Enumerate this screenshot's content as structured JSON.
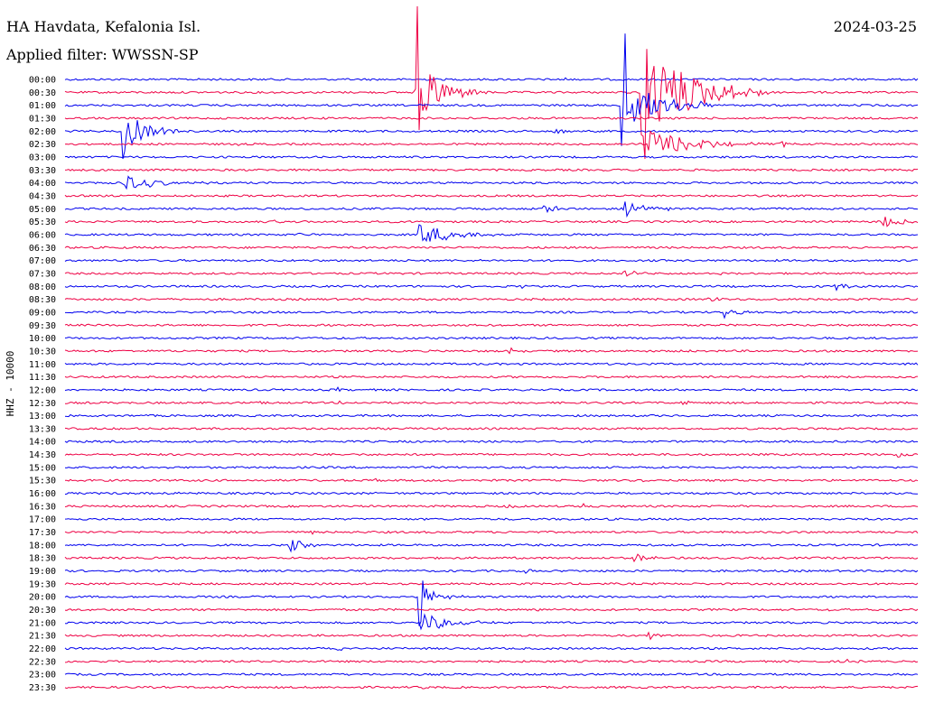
{
  "header": {
    "station": "HA Havdata, Kefalonia Isl.",
    "date": "2024-03-25",
    "filter": "Applied filter: WWSSN-SP"
  },
  "chart_data": {
    "type": "line",
    "title": "HA Havdata, Kefalonia Isl.",
    "ylabel": "HHZ - 10000",
    "rows": [
      "00:00",
      "00:30",
      "01:00",
      "01:30",
      "02:00",
      "02:30",
      "03:00",
      "03:30",
      "04:00",
      "04:30",
      "05:00",
      "05:30",
      "06:00",
      "06:30",
      "07:00",
      "07:30",
      "08:00",
      "08:30",
      "09:00",
      "09:30",
      "10:00",
      "10:30",
      "11:00",
      "11:30",
      "12:00",
      "12:30",
      "13:00",
      "13:30",
      "14:00",
      "14:30",
      "15:00",
      "15:30",
      "16:00",
      "16:30",
      "17:00",
      "17:30",
      "18:00",
      "18:30",
      "19:00",
      "19:30",
      "20:00",
      "20:30",
      "21:00",
      "21:30",
      "22:00",
      "22:30",
      "23:00",
      "23:30"
    ],
    "colors": [
      "#0000ee",
      "#ee0044"
    ],
    "trace_window_minutes": 30,
    "events": [
      {
        "row": 0,
        "minute": 9.7,
        "amplitude": 3,
        "duration": 0.3
      },
      {
        "row": 0,
        "minute": 17.6,
        "amplitude": 5,
        "duration": 0.5
      },
      {
        "row": 1,
        "minute": 12.4,
        "amplitude": 100,
        "duration": 2.5,
        "spike": true
      },
      {
        "row": 1,
        "minute": 20.3,
        "amplitude": 160,
        "duration": 4.5,
        "spike": true
      },
      {
        "row": 2,
        "minute": 19.6,
        "amplitude": 90,
        "duration": 3.5,
        "spike": true
      },
      {
        "row": 4,
        "minute": 17.3,
        "amplitude": 10,
        "duration": 1.2
      },
      {
        "row": 4,
        "minute": 2.1,
        "amplitude": 60,
        "duration": 2.0,
        "spike": true
      },
      {
        "row": 5,
        "minute": 6.1,
        "amplitude": 3,
        "duration": 0.3
      },
      {
        "row": 5,
        "minute": 20.6,
        "amplitude": 45,
        "duration": 4.0
      },
      {
        "row": 5,
        "minute": 25.2,
        "amplitude": 9,
        "duration": 0.8
      },
      {
        "row": 6,
        "minute": 15.1,
        "amplitude": 3,
        "duration": 0.3
      },
      {
        "row": 8,
        "minute": 2.1,
        "amplitude": 25,
        "duration": 3.0
      },
      {
        "row": 8,
        "minute": 9.9,
        "amplitude": 3,
        "duration": 0.4
      },
      {
        "row": 10,
        "minute": 16.8,
        "amplitude": 15,
        "duration": 1.2
      },
      {
        "row": 10,
        "minute": 19.7,
        "amplitude": 25,
        "duration": 2.0
      },
      {
        "row": 11,
        "minute": 7.4,
        "amplitude": 4,
        "duration": 0.8
      },
      {
        "row": 11,
        "minute": 28.8,
        "amplitude": 20,
        "duration": 1.5
      },
      {
        "row": 12,
        "minute": 8.2,
        "amplitude": 4,
        "duration": 0.4
      },
      {
        "row": 12,
        "minute": 12.5,
        "amplitude": 35,
        "duration": 3.0
      },
      {
        "row": 14,
        "minute": 20.4,
        "amplitude": 4,
        "duration": 0.4
      },
      {
        "row": 15,
        "minute": 19.7,
        "amplitude": 12,
        "duration": 1.2
      },
      {
        "row": 15,
        "minute": 23.0,
        "amplitude": 3,
        "duration": 0.3
      },
      {
        "row": 16,
        "minute": 16.1,
        "amplitude": 4,
        "duration": 0.4
      },
      {
        "row": 16,
        "minute": 22.0,
        "amplitude": 7,
        "duration": 0.5
      },
      {
        "row": 16,
        "minute": 27.1,
        "amplitude": 15,
        "duration": 1.2
      },
      {
        "row": 17,
        "minute": 22.7,
        "amplitude": 8,
        "duration": 0.8
      },
      {
        "row": 18,
        "minute": 23.2,
        "amplitude": 18,
        "duration": 1.0
      },
      {
        "row": 19,
        "minute": 11.3,
        "amplitude": 3,
        "duration": 0.3
      },
      {
        "row": 20,
        "minute": 11.5,
        "amplitude": 3,
        "duration": 0.3
      },
      {
        "row": 21,
        "minute": 15.7,
        "amplitude": 10,
        "duration": 0.6
      },
      {
        "row": 21,
        "minute": 22.0,
        "amplitude": 3,
        "duration": 0.3
      },
      {
        "row": 24,
        "minute": 9.6,
        "amplitude": 5,
        "duration": 0.4
      },
      {
        "row": 25,
        "minute": 6.9,
        "amplitude": 7,
        "duration": 0.6
      },
      {
        "row": 25,
        "minute": 9.7,
        "amplitude": 3,
        "duration": 0.3
      },
      {
        "row": 25,
        "minute": 21.7,
        "amplitude": 8,
        "duration": 0.6
      },
      {
        "row": 27,
        "minute": 4.2,
        "amplitude": 3,
        "duration": 0.4
      },
      {
        "row": 27,
        "minute": 26.2,
        "amplitude": 3,
        "duration": 0.4
      },
      {
        "row": 28,
        "minute": 3.9,
        "amplitude": 3,
        "duration": 0.3
      },
      {
        "row": 29,
        "minute": 29.2,
        "amplitude": 12,
        "duration": 2.0
      },
      {
        "row": 31,
        "minute": 11.0,
        "amplitude": 5,
        "duration": 0.4
      },
      {
        "row": 31,
        "minute": 20.3,
        "amplitude": 4,
        "duration": 0.3
      },
      {
        "row": 32,
        "minute": 4.0,
        "amplitude": 3,
        "duration": 0.3
      },
      {
        "row": 32,
        "minute": 10.8,
        "amplitude": 3,
        "duration": 0.3
      },
      {
        "row": 33,
        "minute": 15.5,
        "amplitude": 8,
        "duration": 0.6
      },
      {
        "row": 33,
        "minute": 18.3,
        "amplitude": 7,
        "duration": 0.5
      },
      {
        "row": 35,
        "minute": 8.6,
        "amplitude": 7,
        "duration": 0.5
      },
      {
        "row": 35,
        "minute": 25.5,
        "amplitude": 5,
        "duration": 0.3
      },
      {
        "row": 36,
        "minute": 7.9,
        "amplitude": 20,
        "duration": 1.5
      },
      {
        "row": 37,
        "minute": 20.1,
        "amplitude": 12,
        "duration": 1.2
      },
      {
        "row": 38,
        "minute": 9.5,
        "amplitude": 3,
        "duration": 0.3
      },
      {
        "row": 38,
        "minute": 16.2,
        "amplitude": 7,
        "duration": 0.7
      },
      {
        "row": 39,
        "minute": 7.0,
        "amplitude": 4,
        "duration": 0.3
      },
      {
        "row": 40,
        "minute": 12.5,
        "amplitude": 40,
        "duration": 1.5,
        "spike": true
      },
      {
        "row": 41,
        "minute": 16.6,
        "amplitude": 5,
        "duration": 0.5
      },
      {
        "row": 41,
        "minute": 26.8,
        "amplitude": 4,
        "duration": 0.3
      },
      {
        "row": 41,
        "minute": 27.8,
        "amplitude": 4,
        "duration": 0.3
      },
      {
        "row": 42,
        "minute": 12.6,
        "amplitude": 30,
        "duration": 2.5
      },
      {
        "row": 42,
        "minute": 2.5,
        "amplitude": 3,
        "duration": 0.3
      },
      {
        "row": 43,
        "minute": 20.6,
        "amplitude": 12,
        "duration": 0.9
      },
      {
        "row": 44,
        "minute": 9.6,
        "amplitude": 9,
        "duration": 0.8
      },
      {
        "row": 45,
        "minute": 27.6,
        "amplitude": 5,
        "duration": 0.5
      },
      {
        "row": 46,
        "minute": 4.4,
        "amplitude": 4,
        "duration": 0.5
      },
      {
        "row": 47,
        "minute": 12.6,
        "amplitude": 4,
        "duration": 0.3
      }
    ]
  }
}
